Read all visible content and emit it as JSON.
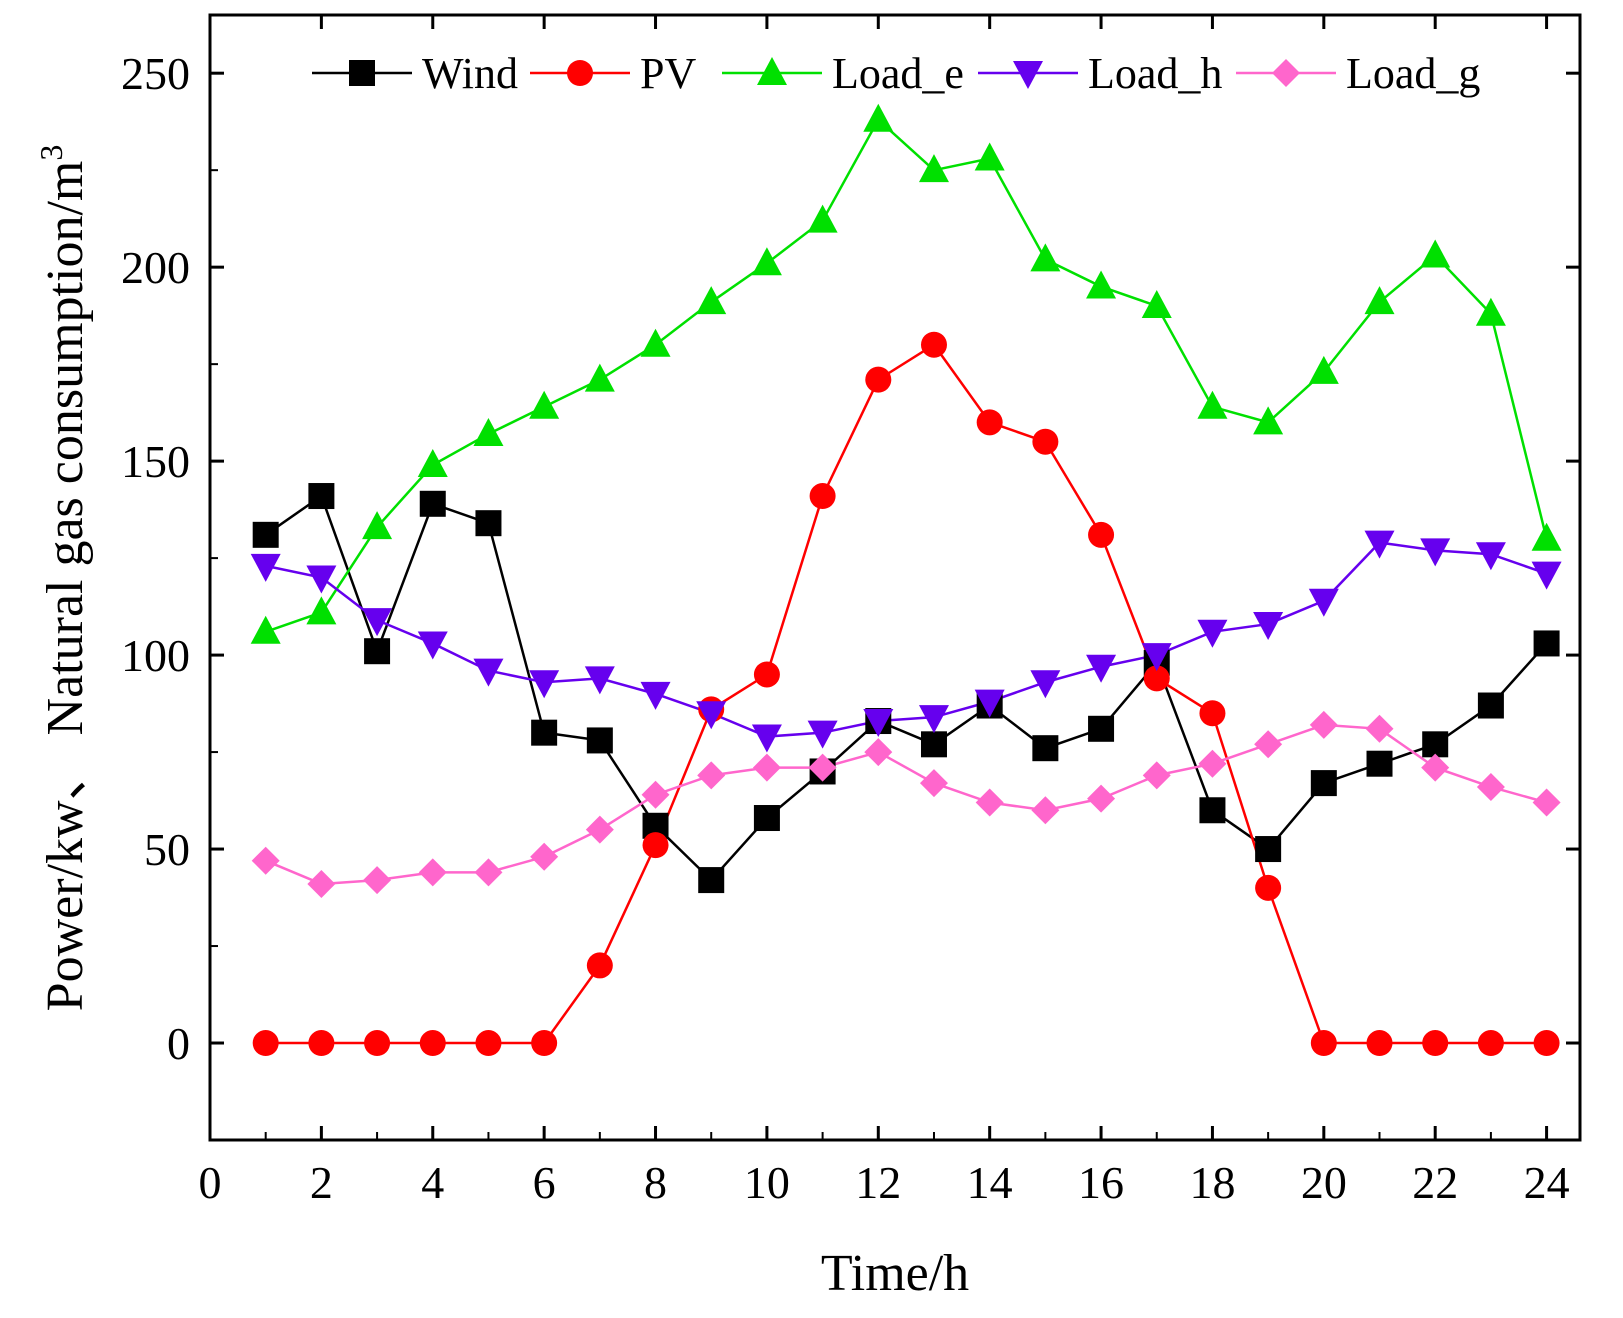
{
  "chart_data": {
    "type": "line",
    "title": "",
    "xlabel": "Time/h",
    "ylabel": "Power/kw、 Natural gas consumption/m",
    "ylabel_sup": "3",
    "xlim": [
      0,
      24.6
    ],
    "ylim": [
      -25,
      265
    ],
    "xticks": [
      0,
      2,
      4,
      6,
      8,
      10,
      12,
      14,
      16,
      18,
      20,
      22,
      24
    ],
    "yticks": [
      0,
      50,
      100,
      150,
      200,
      250
    ],
    "legend_position": "top",
    "x": [
      1,
      2,
      3,
      4,
      5,
      6,
      7,
      8,
      9,
      10,
      11,
      12,
      13,
      14,
      15,
      16,
      17,
      18,
      19,
      20,
      21,
      22,
      23,
      24
    ],
    "series": [
      {
        "name": "Wind",
        "color": "#000000",
        "marker": "square",
        "values": [
          131,
          141,
          101,
          139,
          134,
          80,
          78,
          56,
          42,
          58,
          70,
          83,
          77,
          87,
          76,
          81,
          98,
          60,
          50,
          67,
          72,
          77,
          87,
          103
        ]
      },
      {
        "name": "PV",
        "color": "#ff0000",
        "marker": "circle",
        "values": [
          0,
          0,
          0,
          0,
          0,
          0,
          20,
          51,
          86,
          95,
          141,
          171,
          180,
          160,
          155,
          131,
          94,
          85,
          40,
          0,
          0,
          0,
          0,
          0
        ]
      },
      {
        "name": "Load_e",
        "color": "#00e000",
        "marker": "triangle-up",
        "values": [
          106,
          111,
          133,
          149,
          157,
          164,
          171,
          180,
          191,
          201,
          212,
          238,
          225,
          228,
          202,
          195,
          190,
          164,
          160,
          173,
          191,
          203,
          188,
          130
        ]
      },
      {
        "name": "Load_h",
        "color": "#6600ee",
        "marker": "triangle-down",
        "values": [
          123,
          120,
          109,
          103,
          96,
          93,
          94,
          90,
          85,
          79,
          80,
          83,
          84,
          88,
          93,
          97,
          100,
          106,
          108,
          114,
          129,
          127,
          126,
          121
        ]
      },
      {
        "name": "Load_g",
        "color": "#ff66cc",
        "marker": "diamond",
        "values": [
          47,
          41,
          42,
          44,
          44,
          48,
          55,
          64,
          69,
          71,
          71,
          75,
          67,
          62,
          60,
          63,
          69,
          72,
          77,
          82,
          81,
          71,
          66,
          62
        ]
      }
    ]
  }
}
